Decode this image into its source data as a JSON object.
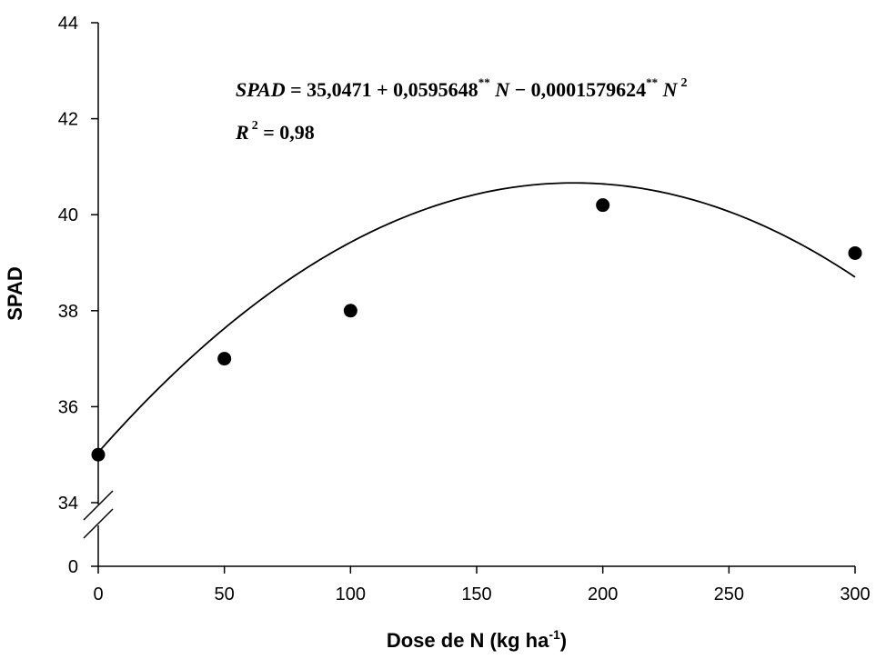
{
  "chart_data": {
    "type": "scatter",
    "title": "",
    "xlabel": {
      "main": "Dose de N (kg ha",
      "sup": "-1",
      "close": ")"
    },
    "ylabel": "SPAD",
    "xlim": [
      0,
      300
    ],
    "ylim": [
      34,
      44
    ],
    "broken_y_axis": true,
    "x_ticks": [
      "0",
      "50",
      "100",
      "150",
      "200",
      "250",
      "300"
    ],
    "y_ticks": [
      "34",
      "36",
      "38",
      "40",
      "42",
      "44"
    ],
    "y_break_tick": "0",
    "grid": false,
    "series": [
      {
        "points": [
          {
            "x": 0,
            "y": 35.0
          },
          {
            "x": 50,
            "y": 37.0
          },
          {
            "x": 100,
            "y": 38.0
          },
          {
            "x": 200,
            "y": 40.2
          },
          {
            "x": 300,
            "y": 39.2
          }
        ],
        "color": "#000000"
      }
    ],
    "fit": {
      "type": "quadratic",
      "coefficients": [
        35.0471,
        0.0595648,
        -0.0001579624
      ],
      "color": "#000000"
    },
    "annotations": {
      "equation": {
        "lhs": "SPAD",
        "eq": " = 35,0471 + 0,0595648",
        "sig1": "**",
        "n1": " N",
        "minus": " − 0,0001579624",
        "sig2": "**",
        "n2": " N",
        "pow": "2"
      },
      "r2": {
        "r": "R",
        "pow": "2",
        "value": " = 0,98"
      }
    }
  }
}
